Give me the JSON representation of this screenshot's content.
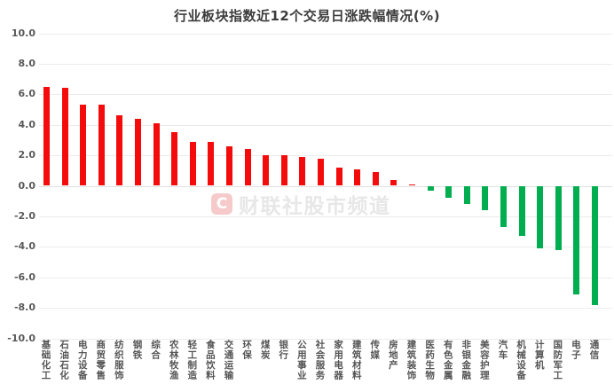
{
  "title": "行业板块指数近12个交易日涨跌幅情况(%)",
  "watermark": {
    "logo_letter": "C",
    "text": "财联社股市频道"
  },
  "colors": {
    "positive": "#f40b0b",
    "negative": "#00ae4f",
    "grid": "#ececec",
    "title_text": "#3d3d3d",
    "axis_text": "#595959"
  },
  "chart_data": {
    "type": "bar",
    "title": "行业板块指数近12个交易日涨跌幅情况(%)",
    "xlabel": "",
    "ylabel": "",
    "ylim": [
      -10,
      10
    ],
    "ytick_step": 2,
    "ytick_labels": [
      "10.0",
      "8.0",
      "6.0",
      "4.0",
      "2.0",
      "0.0",
      "-2.0",
      "-4.0",
      "-6.0",
      "-8.0",
      "-10.0"
    ],
    "grid": true,
    "legend": "none",
    "categories": [
      "基础化工",
      "石油石化",
      "电力设备",
      "商贸零售",
      "纺织服饰",
      "钢铁",
      "综合",
      "农林牧渔",
      "轻工制造",
      "食品饮料",
      "交通运输",
      "环保",
      "煤炭",
      "银行",
      "公用事业",
      "社会服务",
      "家用电器",
      "建筑材料",
      "传媒",
      "房地产",
      "建筑装饰",
      "医药生物",
      "有色金属",
      "非银金融",
      "美容护理",
      "汽车",
      "机械设备",
      "计算机",
      "国防军工",
      "电子",
      "通信"
    ],
    "values": [
      6.5,
      6.4,
      5.3,
      5.3,
      4.6,
      4.4,
      4.1,
      3.5,
      2.9,
      2.9,
      2.6,
      2.4,
      2.0,
      2.0,
      1.9,
      1.8,
      1.2,
      1.1,
      0.9,
      0.4,
      0.1,
      -0.3,
      -0.8,
      -1.2,
      -1.6,
      -2.7,
      -3.3,
      -4.1,
      -4.2,
      -7.1,
      -7.8
    ],
    "positive_color": "#f40b0b",
    "negative_color": "#00ae4f"
  }
}
